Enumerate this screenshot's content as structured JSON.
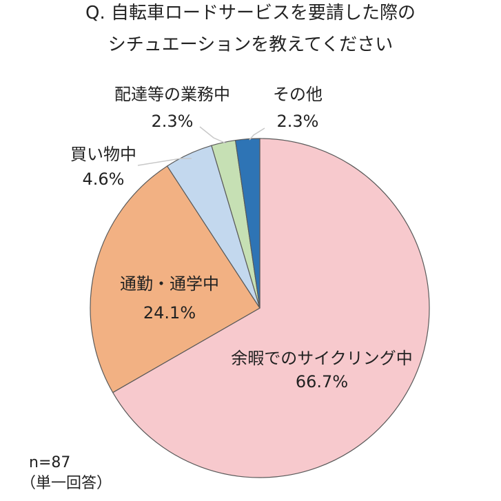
{
  "title": [
    "Q. 自転車ロードサービスを要請した際の",
    "シチュエーションを教えてください"
  ],
  "sample_size": "n=87",
  "answer_type": "（単一回答）",
  "chart_data": {
    "type": "pie",
    "title": "Q. 自転車ロードサービスを要請した際のシチュエーションを教えてください",
    "start": "12 o'clock, clockwise",
    "slices": [
      {
        "label": "余暇でのサイクリング中",
        "value": 66.7,
        "value_label": "66.7%",
        "color": "#f7c9cd"
      },
      {
        "label": "通勤・通学中",
        "value": 24.1,
        "value_label": "24.1%",
        "color": "#f2b183"
      },
      {
        "label": "買い物中",
        "value": 4.6,
        "value_label": "4.6%",
        "color": "#c3d8ee"
      },
      {
        "label": "配達等の業務中",
        "value": 2.3,
        "value_label": "2.3%",
        "color": "#c6e0b4"
      },
      {
        "label": "その他",
        "value": 2.3,
        "value_label": "2.3%",
        "color": "#2e74b5"
      }
    ],
    "slice_border_color": "#595959",
    "leader_line_color": "#c8c8c8"
  }
}
